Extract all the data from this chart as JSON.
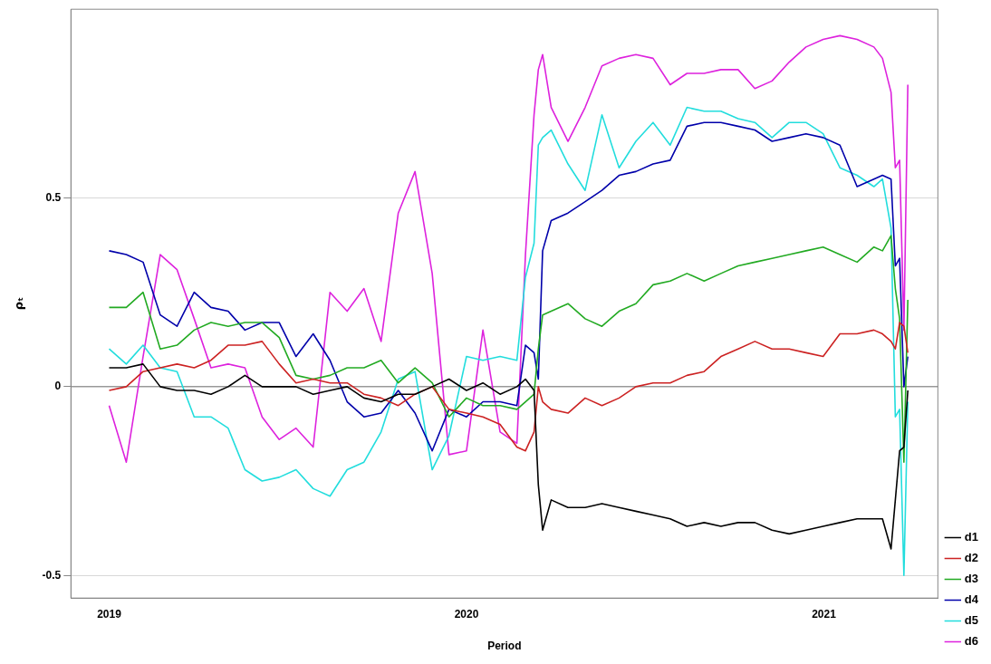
{
  "chart_data": {
    "type": "line",
    "xlabel": "Period",
    "ylabel": "ρₜ",
    "x": [
      2019,
      2019.048,
      2019.095,
      2019.143,
      2019.19,
      2019.238,
      2019.285,
      2019.333,
      2019.38,
      2019.428,
      2019.476,
      2019.523,
      2019.571,
      2019.618,
      2019.666,
      2019.713,
      2019.761,
      2019.809,
      2019.856,
      2019.904,
      2019.951,
      2020,
      2020.046,
      2020.094,
      2020.141,
      2020.165,
      2020.189,
      2020.201,
      2020.213,
      2020.237,
      2020.284,
      2020.332,
      2020.379,
      2020.427,
      2020.474,
      2020.522,
      2020.57,
      2020.617,
      2020.665,
      2020.712,
      2020.76,
      2020.807,
      2020.855,
      2020.903,
      2020.95,
      2020.998,
      2021.045,
      2021.093,
      2021.14,
      2021.164,
      2021.188,
      2021.2,
      2021.212,
      2021.224,
      2021.235
    ],
    "series": [
      {
        "name": "d1",
        "color": "#000000",
        "values": [
          0.05,
          0.05,
          0.06,
          0.0,
          -0.01,
          -0.01,
          -0.02,
          0.0,
          0.03,
          0.0,
          0.0,
          0.0,
          -0.02,
          -0.01,
          0.0,
          -0.03,
          -0.04,
          -0.02,
          -0.02,
          0.0,
          0.02,
          -0.01,
          0.01,
          -0.02,
          0.0,
          0.02,
          -0.01,
          -0.26,
          -0.38,
          -0.3,
          -0.32,
          -0.32,
          -0.31,
          -0.32,
          -0.33,
          -0.34,
          -0.35,
          -0.37,
          -0.36,
          -0.37,
          -0.36,
          -0.36,
          -0.38,
          -0.39,
          -0.38,
          -0.37,
          -0.36,
          -0.35,
          -0.35,
          -0.35,
          -0.43,
          -0.3,
          -0.17,
          -0.16,
          -0.01
        ]
      },
      {
        "name": "d2",
        "color": "#cc2222",
        "values": [
          -0.01,
          0.0,
          0.04,
          0.05,
          0.06,
          0.05,
          0.07,
          0.11,
          0.11,
          0.12,
          0.06,
          0.01,
          0.02,
          0.01,
          0.01,
          -0.02,
          -0.03,
          -0.05,
          -0.02,
          0.0,
          -0.06,
          -0.07,
          -0.08,
          -0.1,
          -0.16,
          -0.17,
          -0.12,
          0.0,
          -0.04,
          -0.06,
          -0.07,
          -0.03,
          -0.05,
          -0.03,
          0.0,
          0.01,
          0.01,
          0.03,
          0.04,
          0.08,
          0.1,
          0.12,
          0.1,
          0.1,
          0.09,
          0.08,
          0.14,
          0.14,
          0.15,
          0.14,
          0.12,
          0.1,
          0.17,
          0.16,
          0.09
        ]
      },
      {
        "name": "d3",
        "color": "#22aa22",
        "values": [
          0.21,
          0.21,
          0.25,
          0.1,
          0.11,
          0.15,
          0.17,
          0.16,
          0.17,
          0.17,
          0.13,
          0.03,
          0.02,
          0.03,
          0.05,
          0.05,
          0.07,
          0.01,
          0.05,
          0.01,
          -0.08,
          -0.03,
          -0.05,
          -0.05,
          -0.06,
          -0.04,
          -0.02,
          0.1,
          0.19,
          0.2,
          0.22,
          0.18,
          0.16,
          0.2,
          0.22,
          0.27,
          0.28,
          0.3,
          0.28,
          0.3,
          0.32,
          0.33,
          0.34,
          0.35,
          0.36,
          0.37,
          0.35,
          0.33,
          0.37,
          0.36,
          0.4,
          0.26,
          0.18,
          -0.2,
          0.23
        ]
      },
      {
        "name": "d4",
        "color": "#0000aa",
        "values": [
          0.36,
          0.35,
          0.33,
          0.19,
          0.16,
          0.25,
          0.21,
          0.2,
          0.15,
          0.17,
          0.17,
          0.08,
          0.14,
          0.07,
          -0.04,
          -0.08,
          -0.07,
          -0.01,
          -0.07,
          -0.17,
          -0.06,
          -0.08,
          -0.04,
          -0.04,
          -0.05,
          0.11,
          0.09,
          0.02,
          0.36,
          0.44,
          0.46,
          0.49,
          0.52,
          0.56,
          0.57,
          0.59,
          0.6,
          0.69,
          0.7,
          0.7,
          0.69,
          0.68,
          0.65,
          0.66,
          0.67,
          0.66,
          0.64,
          0.53,
          0.55,
          0.56,
          0.55,
          0.32,
          0.34,
          0.0,
          0.08
        ]
      },
      {
        "name": "d5",
        "color": "#22dddd",
        "values": [
          0.1,
          0.06,
          0.11,
          0.05,
          0.04,
          -0.08,
          -0.08,
          -0.11,
          -0.22,
          -0.25,
          -0.24,
          -0.22,
          -0.27,
          -0.29,
          -0.22,
          -0.2,
          -0.12,
          0.02,
          0.04,
          -0.22,
          -0.13,
          0.08,
          0.07,
          0.08,
          0.07,
          0.29,
          0.38,
          0.64,
          0.66,
          0.68,
          0.59,
          0.52,
          0.72,
          0.58,
          0.65,
          0.7,
          0.64,
          0.74,
          0.73,
          0.73,
          0.71,
          0.7,
          0.66,
          0.7,
          0.7,
          0.67,
          0.58,
          0.56,
          0.53,
          0.55,
          0.42,
          -0.08,
          -0.06,
          -0.5,
          -0.04
        ]
      },
      {
        "name": "d6",
        "color": "#dd22dd",
        "values": [
          -0.05,
          -0.2,
          0.08,
          0.35,
          0.31,
          0.18,
          0.05,
          0.06,
          0.05,
          -0.08,
          -0.14,
          -0.11,
          -0.16,
          0.25,
          0.2,
          0.26,
          0.12,
          0.46,
          0.57,
          0.3,
          -0.18,
          -0.17,
          0.15,
          -0.12,
          -0.15,
          0.35,
          0.72,
          0.84,
          0.88,
          0.74,
          0.65,
          0.74,
          0.85,
          0.87,
          0.88,
          0.87,
          0.8,
          0.83,
          0.83,
          0.84,
          0.84,
          0.79,
          0.81,
          0.86,
          0.9,
          0.92,
          0.93,
          0.92,
          0.9,
          0.87,
          0.78,
          0.58,
          0.6,
          0.15,
          0.8
        ]
      }
    ],
    "xlim": [
      2018.893,
      2021.319
    ],
    "xticks": [
      2019,
      2020,
      2021
    ],
    "ylim": [
      -0.56,
      1.0
    ],
    "yticks": [
      -0.5,
      0.0,
      0.5
    ],
    "ref_lines": [
      {
        "axis": "y",
        "value": 0,
        "color": "#999999"
      }
    ],
    "grid": "y",
    "legend": "bottom right"
  }
}
